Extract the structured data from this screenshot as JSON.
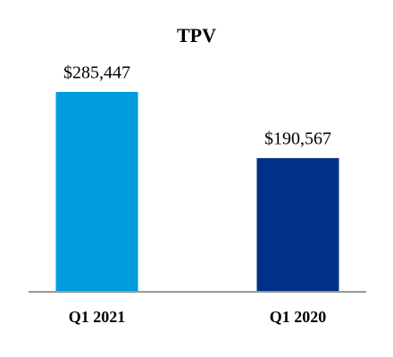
{
  "chart_data": {
    "type": "bar",
    "title": "TPV",
    "categories": [
      "Q1 2021",
      "Q1 2020"
    ],
    "values": [
      285447,
      190567
    ],
    "value_labels": [
      "$285,447",
      "$190,567"
    ],
    "colors": [
      "#009cde",
      "#003087"
    ]
  }
}
